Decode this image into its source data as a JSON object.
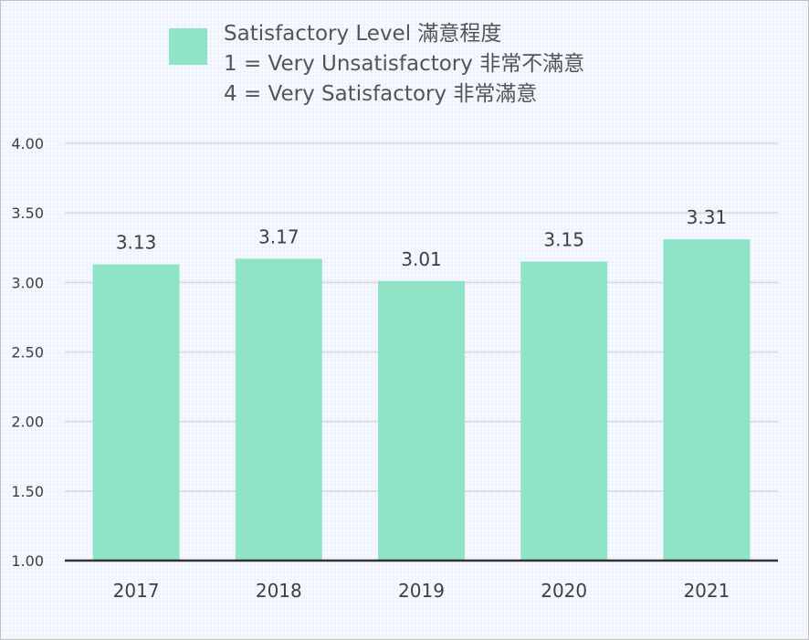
{
  "legend": {
    "color": "#8fe3c6",
    "lines": [
      "Satisfactory Level 滿意程度",
      "1 = Very Unsatisfactory 非常不滿意",
      "4 = Very Satisfactory 非常滿意"
    ]
  },
  "chart_data": {
    "type": "bar",
    "categories": [
      "2017",
      "2018",
      "2019",
      "2020",
      "2021"
    ],
    "series": [
      {
        "name": "Satisfactory Level 滿意程度",
        "values": [
          3.13,
          3.17,
          3.01,
          3.15,
          3.31
        ],
        "labels": [
          "3.13",
          "3.17",
          "3.01",
          "3.15",
          "3.31"
        ],
        "color": "#8fe3c6"
      }
    ],
    "ylim": [
      1.0,
      4.0
    ],
    "yticks": [
      "1.00",
      "1.50",
      "2.00",
      "2.50",
      "3.00",
      "3.50",
      "4.00"
    ],
    "grid": true,
    "legend_position": "top",
    "background": "#f5f8fe",
    "gridline_color": "#d9d9d9",
    "axis_color": "#333333",
    "text_color": "#404040"
  }
}
